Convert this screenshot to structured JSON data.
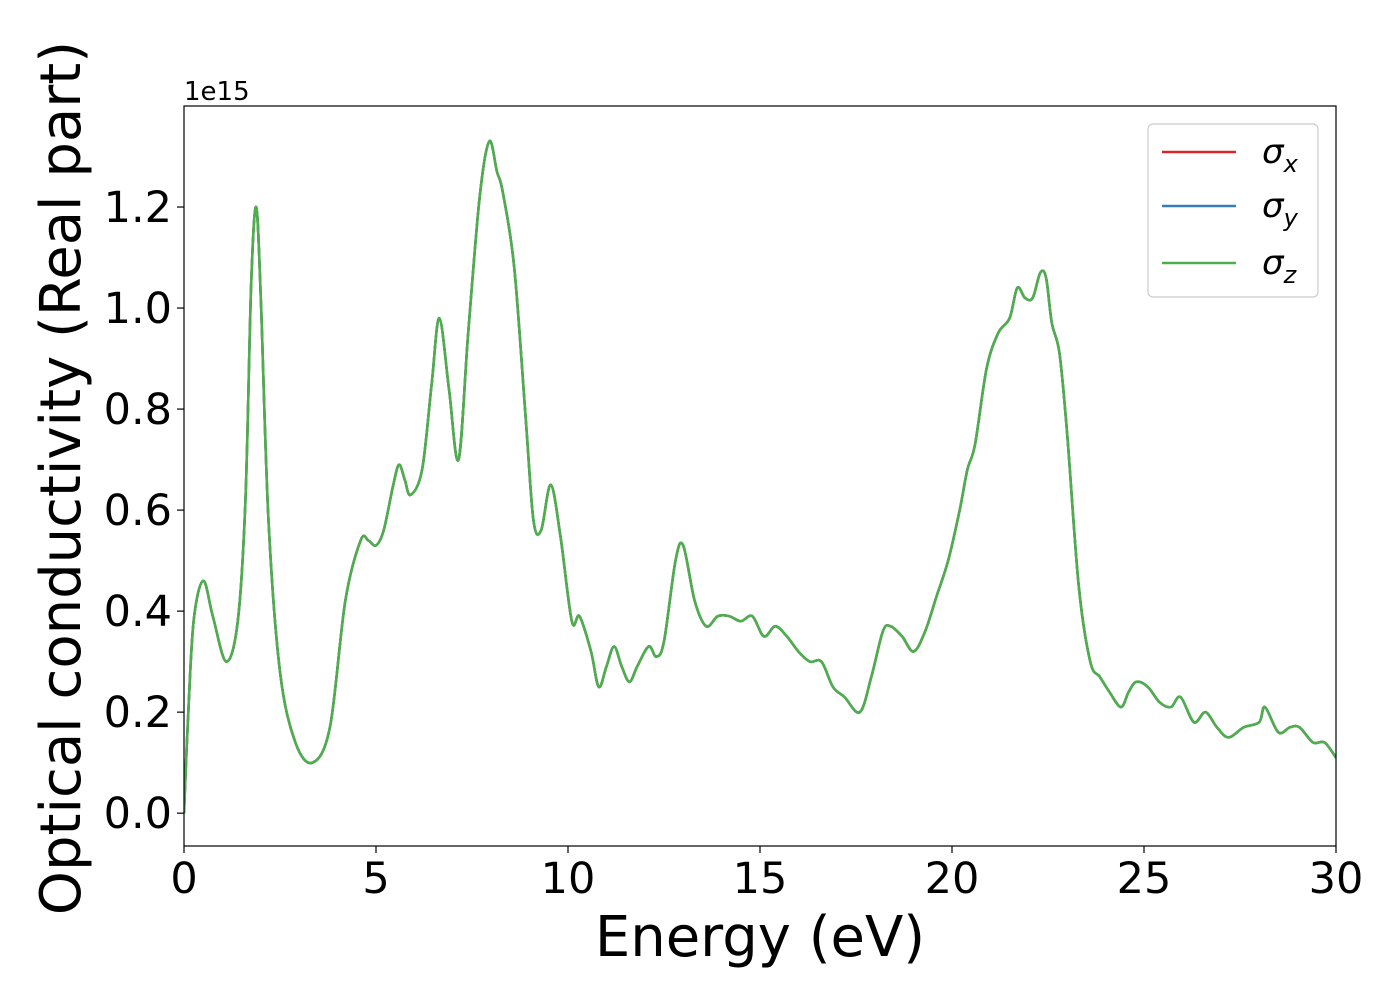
{
  "chart_data": {
    "type": "line",
    "xlabel": "Energy (eV)",
    "ylabel": "Optical conductivity (Real part)",
    "y_offset_label": "1e15",
    "xlim": [
      0,
      30
    ],
    "ylim": [
      -0.065,
      1.4
    ],
    "x_ticks": [
      0,
      5,
      10,
      15,
      20,
      25,
      30
    ],
    "x_tick_labels": [
      "0",
      "5",
      "10",
      "15",
      "20",
      "25",
      "30"
    ],
    "y_ticks": [
      0.0,
      0.2,
      0.4,
      0.6,
      0.8,
      1.0,
      1.2
    ],
    "y_tick_labels": [
      "0.0",
      "0.2",
      "0.4",
      "0.6",
      "0.8",
      "1.0",
      "1.2"
    ],
    "grid": false,
    "legend_position": "top-right",
    "series": [
      {
        "name": "σx",
        "color": "#d62728"
      },
      {
        "name": "σy",
        "color": "#377eb8"
      },
      {
        "name": "σz",
        "color": "#4daf4a"
      }
    ],
    "series_values_note": "all three series coincide",
    "x": [
      0,
      0.1,
      0.25,
      0.5,
      0.75,
      1.1,
      1.4,
      1.6,
      1.75,
      1.88,
      2.0,
      2.2,
      2.5,
      2.9,
      3.35,
      3.8,
      4.2,
      4.6,
      4.8,
      5.0,
      5.2,
      5.45,
      5.6,
      5.75,
      5.9,
      6.2,
      6.45,
      6.65,
      6.9,
      7.15,
      7.4,
      7.7,
      7.95,
      8.15,
      8.3,
      8.6,
      8.9,
      9.1,
      9.3,
      9.55,
      9.8,
      10.1,
      10.3,
      10.6,
      10.8,
      11.0,
      11.2,
      11.4,
      11.6,
      11.8,
      12.1,
      12.3,
      12.5,
      12.8,
      13.0,
      13.3,
      13.6,
      13.9,
      14.2,
      14.5,
      14.8,
      15.1,
      15.4,
      15.7,
      16.0,
      16.3,
      16.6,
      16.9,
      17.2,
      17.6,
      17.9,
      18.2,
      18.4,
      18.7,
      19.0,
      19.3,
      19.6,
      19.9,
      20.2,
      20.4,
      20.6,
      20.9,
      21.2,
      21.5,
      21.7,
      21.9,
      22.1,
      22.3,
      22.45,
      22.6,
      22.8,
      23.0,
      23.3,
      23.6,
      23.85,
      24.1,
      24.4,
      24.6,
      24.8,
      25.1,
      25.4,
      25.7,
      25.95,
      26.3,
      26.6,
      26.9,
      27.2,
      27.6,
      28.0,
      28.15,
      28.5,
      28.8,
      29.05,
      29.4,
      29.7,
      30.0
    ],
    "values": [
      0.0,
      0.18,
      0.38,
      0.46,
      0.39,
      0.3,
      0.38,
      0.62,
      1.05,
      1.2,
      1.02,
      0.58,
      0.28,
      0.14,
      0.1,
      0.17,
      0.42,
      0.54,
      0.54,
      0.53,
      0.56,
      0.65,
      0.69,
      0.66,
      0.63,
      0.68,
      0.85,
      0.98,
      0.84,
      0.7,
      0.95,
      1.22,
      1.33,
      1.27,
      1.23,
      1.08,
      0.78,
      0.58,
      0.56,
      0.65,
      0.55,
      0.38,
      0.39,
      0.32,
      0.25,
      0.29,
      0.33,
      0.29,
      0.26,
      0.29,
      0.33,
      0.31,
      0.34,
      0.5,
      0.53,
      0.42,
      0.37,
      0.39,
      0.39,
      0.38,
      0.39,
      0.35,
      0.37,
      0.35,
      0.32,
      0.3,
      0.3,
      0.25,
      0.23,
      0.2,
      0.27,
      0.36,
      0.37,
      0.35,
      0.32,
      0.36,
      0.43,
      0.5,
      0.6,
      0.68,
      0.73,
      0.88,
      0.95,
      0.98,
      1.04,
      1.02,
      1.02,
      1.07,
      1.06,
      0.97,
      0.91,
      0.75,
      0.45,
      0.3,
      0.27,
      0.24,
      0.21,
      0.24,
      0.26,
      0.25,
      0.22,
      0.21,
      0.23,
      0.18,
      0.2,
      0.17,
      0.15,
      0.17,
      0.18,
      0.21,
      0.16,
      0.17,
      0.17,
      0.14,
      0.14,
      0.11
    ]
  }
}
